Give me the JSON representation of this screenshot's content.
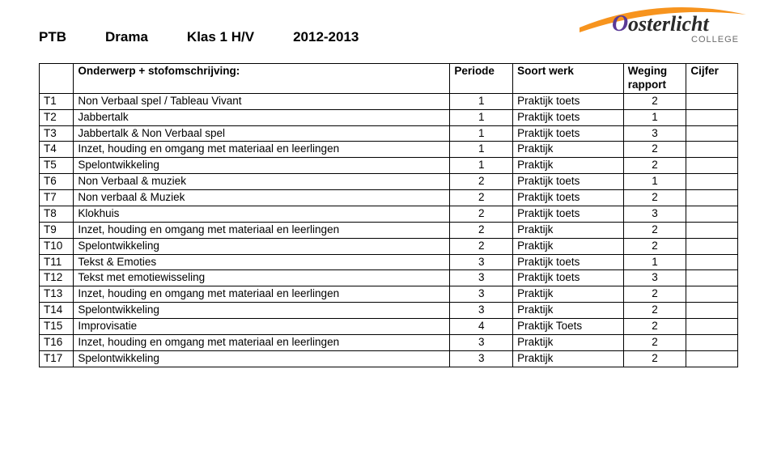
{
  "header": {
    "code": "PTB",
    "subject": "Drama",
    "klas": "Klas 1 H/V",
    "year": "2012-2013"
  },
  "logo": {
    "main_text": "osterlicht",
    "sub_text": "COLLEGE",
    "o_color": "#5a3a96",
    "text_color": "#2a2a2a",
    "sub_color": "#6b6b6b",
    "swoosh_color": "#f7941e"
  },
  "columns": {
    "code_header": "",
    "desc_header": "Onderwerp + stofomschrijving:",
    "period_header": "Periode",
    "werk_header": "Soort werk",
    "weging_header_line1": "Weging",
    "weging_header_line2": "rapport",
    "cijfer_header": "Cijfer"
  },
  "rows": [
    {
      "code": "T1",
      "desc": "Non Verbaal spel / Tableau Vivant",
      "period": "1",
      "werk": "Praktijk toets",
      "weging": "2",
      "cijfer": ""
    },
    {
      "code": "T2",
      "desc": "Jabbertalk",
      "period": "1",
      "werk": "Praktijk toets",
      "weging": "1",
      "cijfer": ""
    },
    {
      "code": "T3",
      "desc": "Jabbertalk & Non Verbaal spel",
      "period": "1",
      "werk": "Praktijk toets",
      "weging": "3",
      "cijfer": ""
    },
    {
      "code": "T4",
      "desc": "Inzet, houding en omgang met materiaal en leerlingen",
      "period": "1",
      "werk": "Praktijk",
      "weging": "2",
      "cijfer": ""
    },
    {
      "code": "T5",
      "desc": "Spelontwikkeling",
      "period": "1",
      "werk": "Praktijk",
      "weging": "2",
      "cijfer": ""
    },
    {
      "code": "T6",
      "desc": "Non Verbaal & muziek",
      "period": "2",
      "werk": "Praktijk toets",
      "weging": "1",
      "cijfer": ""
    },
    {
      "code": "T7",
      "desc": "Non verbaal & Muziek",
      "period": "2",
      "werk": "Praktijk toets",
      "weging": "2",
      "cijfer": ""
    },
    {
      "code": "T8",
      "desc": "Klokhuis",
      "period": "2",
      "werk": "Praktijk toets",
      "weging": "3",
      "cijfer": ""
    },
    {
      "code": "T9",
      "desc": "Inzet, houding en omgang met materiaal en leerlingen",
      "period": "2",
      "werk": "Praktijk",
      "weging": "2",
      "cijfer": ""
    },
    {
      "code": "T10",
      "desc": "Spelontwikkeling",
      "period": "2",
      "werk": "Praktijk",
      "weging": "2",
      "cijfer": ""
    },
    {
      "code": "T11",
      "desc": "Tekst & Emoties",
      "period": "3",
      "werk": "Praktijk toets",
      "weging": "1",
      "cijfer": ""
    },
    {
      "code": "T12",
      "desc": "Tekst met emotiewisseling",
      "period": "3",
      "werk": "Praktijk toets",
      "weging": "3",
      "cijfer": ""
    },
    {
      "code": "T13",
      "desc": "Inzet, houding en omgang met materiaal en leerlingen",
      "period": "3",
      "werk": "Praktijk",
      "weging": "2",
      "cijfer": ""
    },
    {
      "code": "T14",
      "desc": "Spelontwikkeling",
      "period": "3",
      "werk": "Praktijk",
      "weging": "2",
      "cijfer": ""
    },
    {
      "code": "T15",
      "desc": "Improvisatie",
      "period": "4",
      "werk": "Praktijk Toets",
      "weging": "2",
      "cijfer": ""
    },
    {
      "code": "T16",
      "desc": "Inzet, houding en omgang met materiaal en leerlingen",
      "period": "3",
      "werk": "Praktijk",
      "weging": "2",
      "cijfer": ""
    },
    {
      "code": "T17",
      "desc": "Spelontwikkeling",
      "period": "3",
      "werk": "Praktijk",
      "weging": "2",
      "cijfer": ""
    }
  ]
}
